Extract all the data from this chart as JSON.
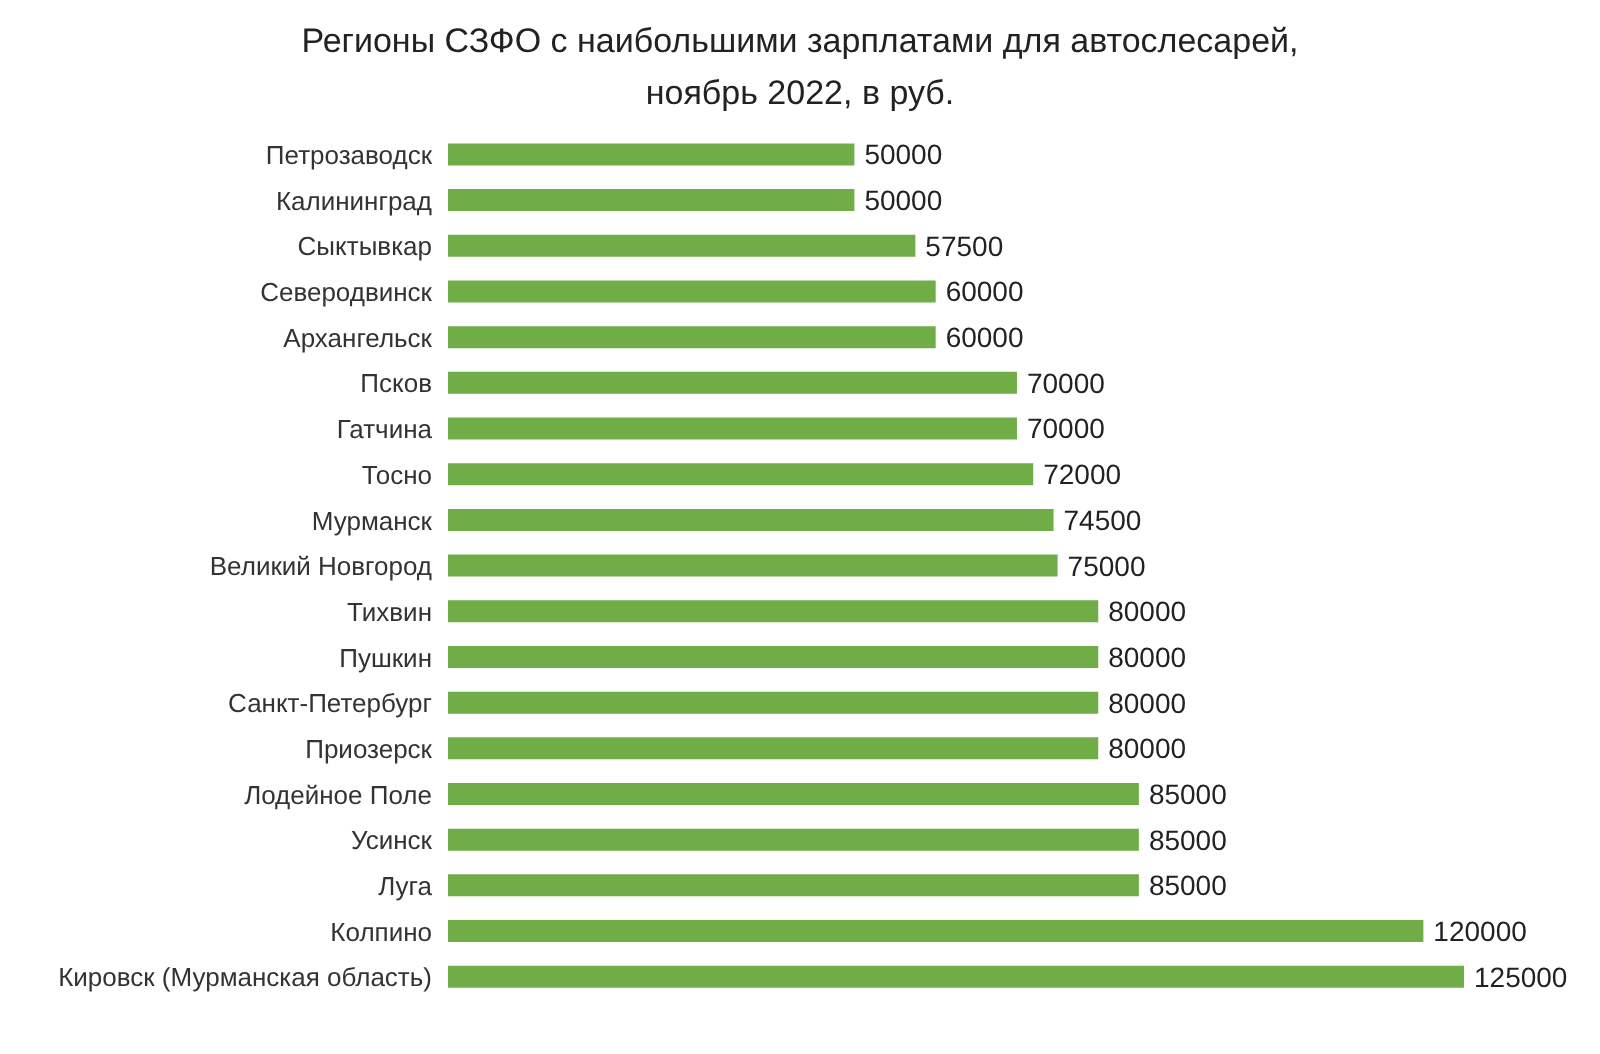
{
  "chart_data": {
    "type": "bar",
    "orientation": "horizontal",
    "title": "Регионы СЗФО с наибольшими зарплатами для автослесарей, ноябрь 2022, в руб.",
    "categories": [
      "Петрозаводск",
      "Калининград",
      "Сыктывкар",
      "Северодвинск",
      "Архангельск",
      "Псков",
      "Гатчина",
      "Тосно",
      "Мурманск",
      "Великий Новгород",
      "Тихвин",
      "Пушкин",
      "Санкт-Петербург",
      "Приозерск",
      "Лодейное Поле",
      "Усинск",
      "Луга",
      "Колпино",
      "Кировск (Мурманская область)"
    ],
    "values": [
      50000,
      50000,
      57500,
      60000,
      60000,
      70000,
      70000,
      72000,
      74500,
      75000,
      80000,
      80000,
      80000,
      80000,
      85000,
      85000,
      85000,
      120000,
      125000
    ],
    "color": "#70ad47",
    "data_labels": true,
    "tick_labels": "y"
  }
}
